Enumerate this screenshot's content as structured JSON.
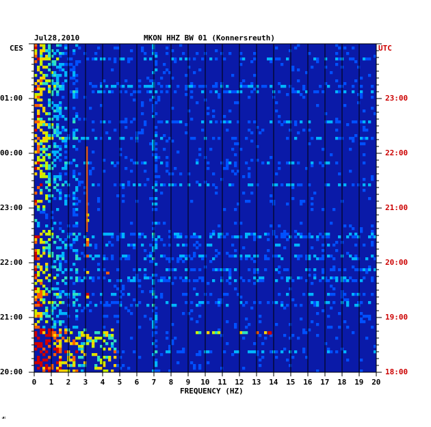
{
  "header": {
    "date": "Jul28,2010",
    "station": "MKON HHZ BW 01 (Konnersreuth)"
  },
  "chart_data": {
    "type": "heatmap",
    "xlabel": "FREQUENCY (HZ)",
    "xlim": [
      0,
      20
    ],
    "x_ticks": [
      "0",
      "1",
      "2",
      "3",
      "4",
      "5",
      "6",
      "7",
      "8",
      "9",
      "10",
      "11",
      "12",
      "13",
      "14",
      "15",
      "16",
      "17",
      "18",
      "19",
      "20"
    ],
    "left_axis": {
      "label": "CES",
      "ticks": [
        "01:00",
        "00:00",
        "23:00",
        "22:00",
        "21:00",
        "20:00"
      ]
    },
    "right_axis": {
      "label": "UTC",
      "ticks": [
        "23:00",
        "22:00",
        "21:00",
        "20:00",
        "19:00",
        "18:00"
      ]
    },
    "colormap": [
      "#00008b",
      "#0000cd",
      "#0050ff",
      "#00b4ff",
      "#30e0c0",
      "#c8f000",
      "#ffd000",
      "#ff6000",
      "#d00000"
    ],
    "background_color": "#0a1aa8",
    "features": [
      {
        "freq_hz": 3.1,
        "from": "00:00",
        "to": "22:40",
        "intensity": "red vertical line"
      },
      {
        "freq_hz": 13.8,
        "at": "20:43",
        "intensity": "red spot"
      },
      {
        "freq_hz": 4.3,
        "at": "21:48",
        "intensity": "orange spot"
      },
      {
        "freq_hz": [
          0,
          2
        ],
        "from": "01:30",
        "to": "20:00",
        "intensity": "high broadband noise"
      },
      {
        "freq_hz": [
          2,
          4.8
        ],
        "from": "20:45",
        "to": "20:00",
        "intensity": "elevated noise"
      },
      {
        "freq_hz": [
          9.5,
          14
        ],
        "at": "20:43",
        "intensity": "cyan horizontal band"
      }
    ]
  },
  "footer_mark": "☙"
}
